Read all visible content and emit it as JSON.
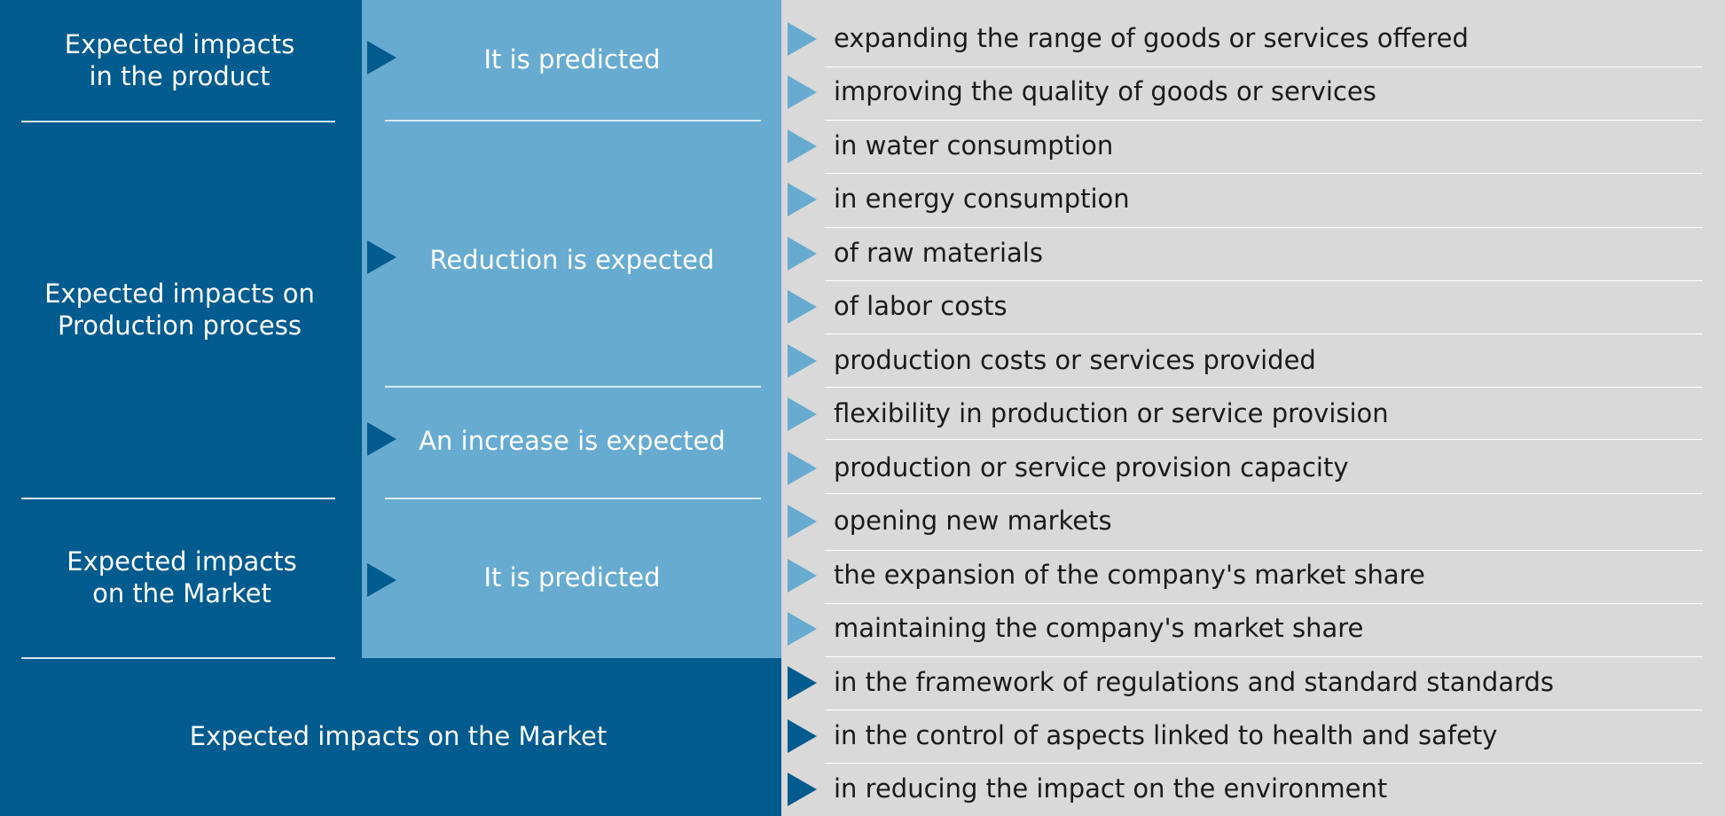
{
  "colors": {
    "dark_blue": "#005b8f",
    "light_blue": "#67abd0",
    "gray": "#d9d9d9",
    "white": "#ffffff"
  },
  "categories": {
    "product": "Expected impacts\nin the product",
    "production": "Expected impacts on\nProduction process",
    "market": "Expected impacts\non the Market",
    "bottom": "Expected impacts on the Market"
  },
  "subcategories": {
    "product_predicted": "It is predicted",
    "reduction": "Reduction is expected",
    "increase": "An increase is expected",
    "market_predicted": "It is predicted"
  },
  "items": [
    "expanding the range of goods or services offered",
    "improving the quality of goods or services",
    "in water consumption",
    "in energy consumption",
    "of raw materials",
    "of labor costs",
    "production costs or services provided",
    "flexibility in production or service provision",
    "production or service provision capacity",
    "opening new markets",
    "the expansion of the company's market share",
    "maintaining the company's market share",
    "in the framework of regulations and standard standards",
    "in the control of aspects linked to health and safety",
    "in reducing the impact on the environment"
  ],
  "icons": {
    "item_arrow": "triangle-right-icon",
    "sub_arrow": "triangle-right-icon"
  }
}
